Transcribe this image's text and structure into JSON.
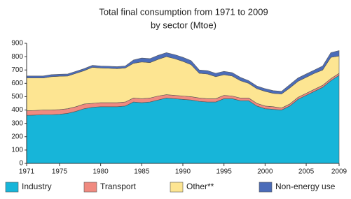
{
  "chart_data": {
    "type": "stacked-area",
    "title": "Total final consumption from 1971 to 2009",
    "subtitle": "by sector (Mtoe)",
    "x": [
      1971,
      1972,
      1973,
      1974,
      1975,
      1976,
      1977,
      1978,
      1979,
      1980,
      1981,
      1982,
      1983,
      1984,
      1985,
      1986,
      1987,
      1988,
      1989,
      1990,
      1991,
      1992,
      1993,
      1994,
      1995,
      1996,
      1997,
      1998,
      1999,
      2000,
      2001,
      2002,
      2003,
      2004,
      2005,
      2006,
      2007,
      2008,
      2009
    ],
    "series": [
      {
        "name": "Industry",
        "color": "#17b5d9",
        "values": [
          360,
          362,
          365,
          365,
          368,
          375,
          390,
          410,
          420,
          425,
          425,
          425,
          430,
          460,
          455,
          460,
          475,
          490,
          485,
          480,
          475,
          465,
          460,
          460,
          485,
          485,
          470,
          470,
          430,
          410,
          405,
          400,
          430,
          480,
          510,
          540,
          570,
          620,
          660
        ]
      },
      {
        "name": "Transport",
        "color": "#f08a80",
        "values": [
          35,
          35,
          35,
          35,
          35,
          35,
          35,
          35,
          30,
          30,
          30,
          30,
          30,
          30,
          30,
          30,
          30,
          25,
          25,
          25,
          25,
          25,
          25,
          25,
          25,
          20,
          20,
          20,
          20,
          20,
          20,
          15,
          15,
          15,
          15,
          15,
          15,
          15,
          15
        ]
      },
      {
        "name": "Other**",
        "color": "#fde592",
        "values": [
          245,
          243,
          240,
          250,
          250,
          245,
          250,
          250,
          270,
          260,
          258,
          255,
          255,
          260,
          275,
          265,
          275,
          285,
          275,
          260,
          240,
          185,
          185,
          165,
          155,
          150,
          130,
          110,
          110,
          110,
          100,
          105,
          120,
          120,
          120,
          120,
          115,
          160,
          130
        ]
      },
      {
        "name": "Non-energy use",
        "color": "#4b6cb9",
        "values": [
          15,
          15,
          15,
          15,
          15,
          15,
          15,
          15,
          15,
          15,
          15,
          15,
          15,
          25,
          30,
          30,
          30,
          30,
          30,
          30,
          30,
          25,
          25,
          25,
          25,
          25,
          25,
          20,
          20,
          20,
          20,
          20,
          25,
          25,
          25,
          25,
          30,
          35,
          40
        ]
      }
    ],
    "xlim": [
      1971,
      2009
    ],
    "xticks": [
      1971,
      1975,
      1980,
      1985,
      1990,
      1995,
      2000,
      2005,
      2009
    ],
    "ylim": [
      0,
      900
    ],
    "yticks": [
      0,
      100,
      200,
      300,
      400,
      500,
      600,
      700,
      800,
      900
    ],
    "legend": "bottom"
  }
}
